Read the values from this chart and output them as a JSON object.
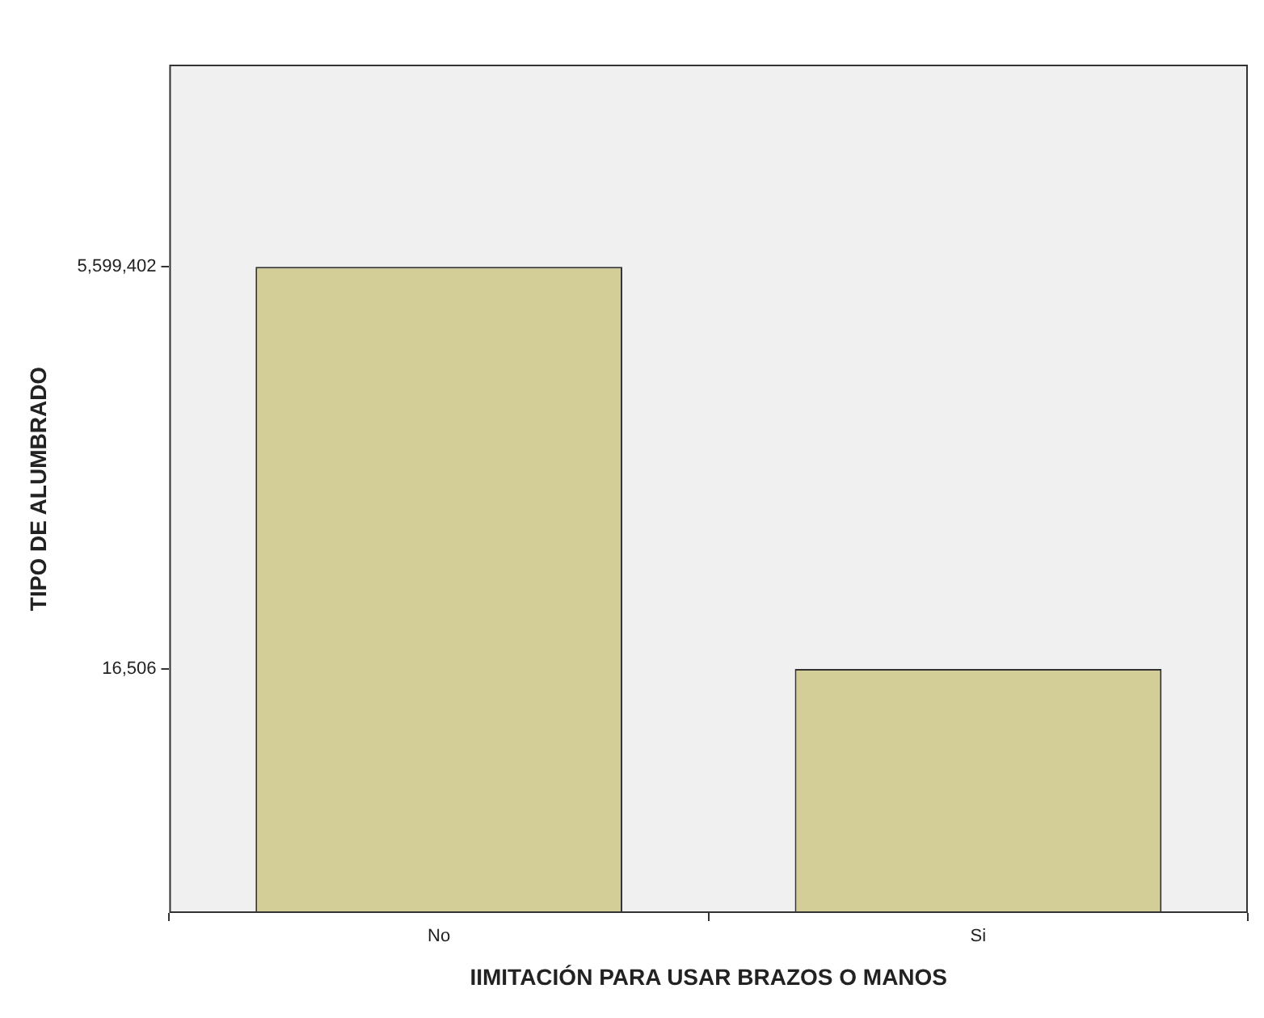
{
  "chart_data": {
    "type": "bar",
    "xlabel": "IIMITACIÓN PARA USAR BRAZOS O MANOS",
    "ylabel": "TIPO DE ALUMBRADO",
    "categories": [
      "No",
      "Si"
    ],
    "values": [
      5599402,
      16506
    ],
    "color": "#d3ce97",
    "log": true,
    "ylim": [
      480,
      105000000
    ],
    "yticks": [
      {
        "value": 16506,
        "label": "16,506"
      },
      {
        "value": 5599402,
        "label": "5,599,402"
      }
    ],
    "grid": false,
    "legend": false
  }
}
